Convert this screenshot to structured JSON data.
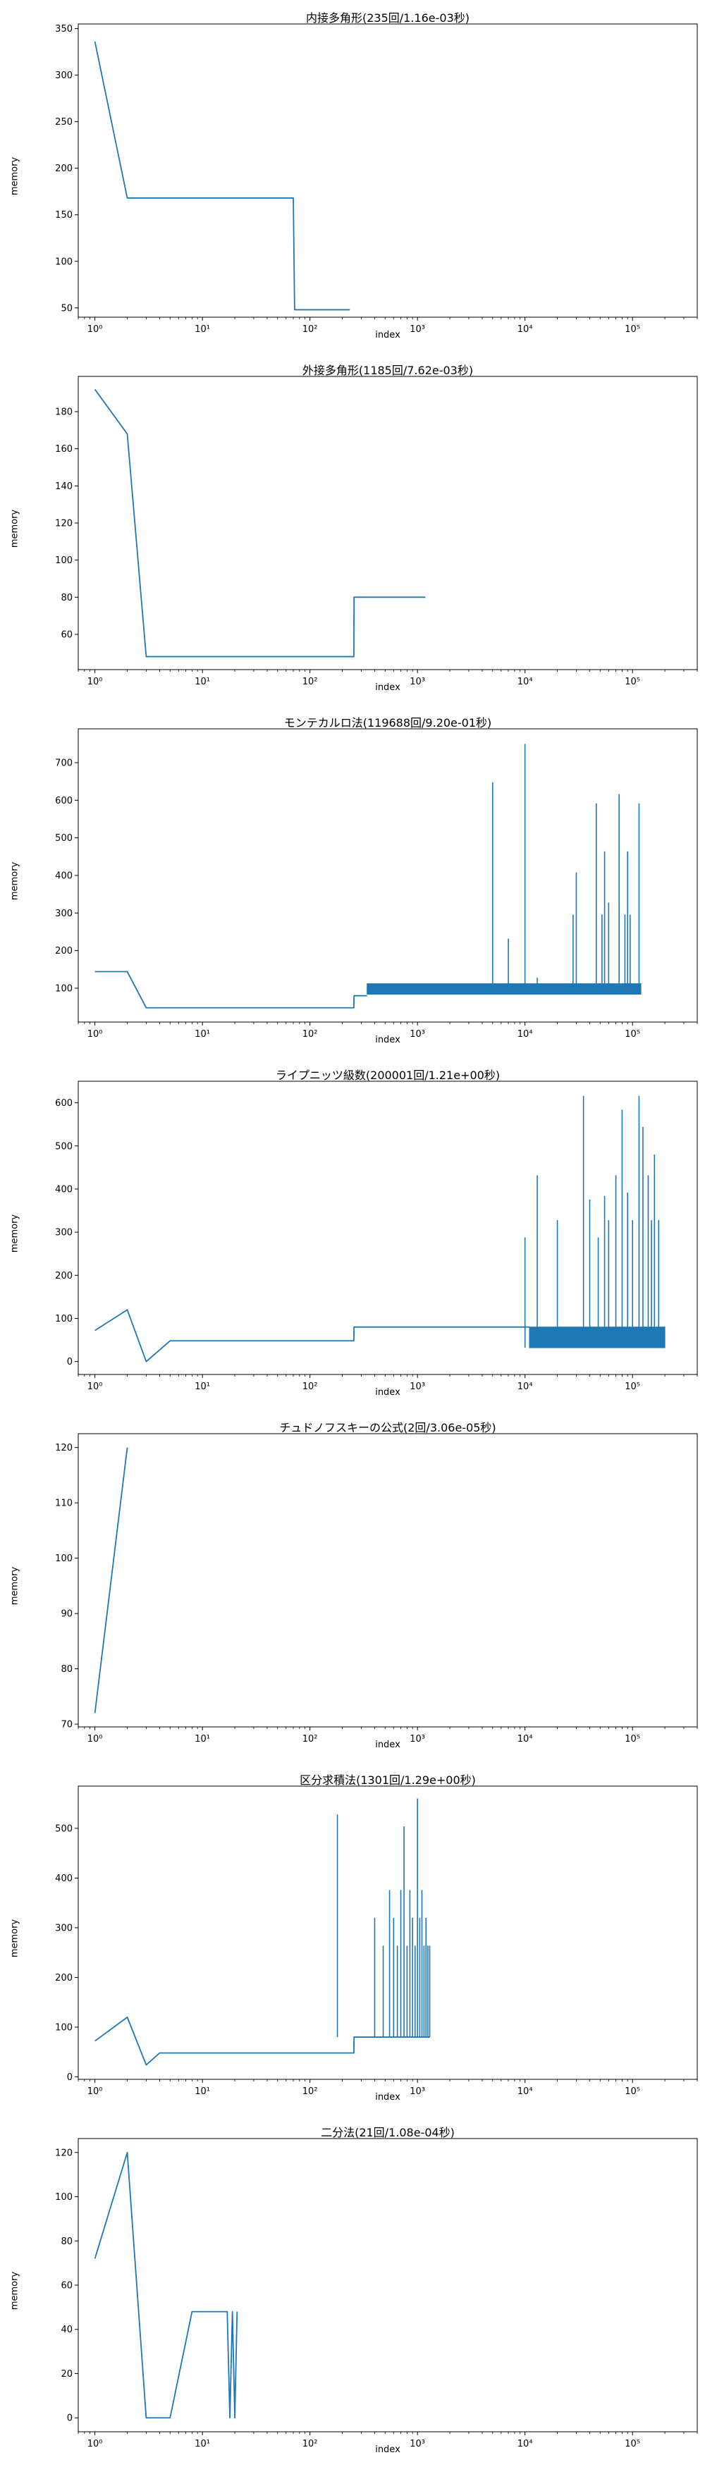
{
  "chart_data": [
    {
      "type": "line",
      "title": "内接多角形(235回/1.16e-03秒)",
      "xlabel": "index",
      "ylabel": "memory",
      "xscale": "log",
      "xlim": [
        0.7,
        400000
      ],
      "ylim": [
        40,
        355
      ],
      "yticks": [
        50,
        100,
        150,
        200,
        250,
        300,
        350
      ],
      "xticks": [
        1,
        10,
        100,
        1000,
        10000,
        100000
      ],
      "series": [
        {
          "color": "#1f77b4",
          "x": [
            1,
            2,
            70,
            72,
            235
          ],
          "y": [
            336,
            168,
            168,
            48,
            48
          ]
        }
      ],
      "spikes": null
    },
    {
      "type": "line",
      "title": "外接多角形(1185回/7.62e-03秒)",
      "xlabel": "index",
      "ylabel": "memory",
      "xscale": "log",
      "xlim": [
        0.7,
        400000
      ],
      "ylim": [
        41,
        199
      ],
      "yticks": [
        60,
        80,
        100,
        120,
        140,
        160,
        180
      ],
      "xticks": [
        1,
        10,
        100,
        1000,
        10000,
        100000
      ],
      "series": [
        {
          "color": "#1f77b4",
          "x": [
            1,
            2,
            3,
            256,
            257,
            1185
          ],
          "y": [
            192,
            168,
            48,
            48,
            80,
            80
          ]
        }
      ],
      "spikes": null
    },
    {
      "type": "line",
      "title": "モンテカルロ法(119688回/9.20e-01秒)",
      "xlabel": "index",
      "ylabel": "memory",
      "xscale": "log",
      "xlim": [
        0.7,
        400000
      ],
      "ylim": [
        10,
        790
      ],
      "yticks": [
        100,
        200,
        300,
        400,
        500,
        600,
        700
      ],
      "xticks": [
        1,
        10,
        100,
        1000,
        10000,
        100000
      ],
      "series": [
        {
          "color": "#1f77b4",
          "x": [
            1,
            2,
            3,
            256,
            257,
            340
          ],
          "y": [
            144,
            144,
            48,
            48,
            80,
            80
          ]
        }
      ],
      "spikes": {
        "color": "#1f77b4",
        "band": [
          {
            "from": 340,
            "to": 119688,
            "low": 84,
            "high": 112
          }
        ],
        "x": [
          5000,
          7000,
          10000,
          13000,
          28000,
          30000,
          46000,
          52000,
          55000,
          60000,
          75000,
          85000,
          90000,
          95000,
          115000
        ],
        "y": [
          648,
          232,
          750,
          128,
          296,
          408,
          592,
          296,
          464,
          328,
          616,
          296,
          464,
          296,
          592
        ]
      }
    },
    {
      "type": "line",
      "title": "ライプニッツ級数(200001回/1.21e+00秒)",
      "xlabel": "index",
      "ylabel": "memory",
      "xscale": "log",
      "xlim": [
        0.7,
        400000
      ],
      "ylim": [
        -30,
        650
      ],
      "yticks": [
        0,
        100,
        200,
        300,
        400,
        500,
        600
      ],
      "xticks": [
        1,
        10,
        100,
        1000,
        10000,
        100000
      ],
      "series": [
        {
          "color": "#1f77b4",
          "x": [
            1,
            2,
            3,
            5,
            256,
            257,
            11000
          ],
          "y": [
            72,
            120,
            0,
            48,
            48,
            80,
            80
          ]
        }
      ],
      "spikes": {
        "color": "#1f77b4",
        "band": [
          {
            "from": 11000,
            "to": 200001,
            "low": 32,
            "high": 80
          }
        ],
        "x": [
          10000,
          13000,
          20000,
          35000,
          40000,
          48000,
          55000,
          60000,
          70000,
          80000,
          90000,
          100000,
          115000,
          125000,
          140000,
          150000,
          160000,
          175000
        ],
        "y": [
          288,
          432,
          328,
          616,
          376,
          288,
          384,
          328,
          432,
          584,
          392,
          328,
          616,
          544,
          432,
          328,
          480,
          328
        ]
      }
    },
    {
      "type": "line",
      "title": "チュドノフスキーの公式(2回/3.06e-05秒)",
      "xlabel": "index",
      "ylabel": "memory",
      "xscale": "log",
      "xlim": [
        0.7,
        400000
      ],
      "ylim": [
        69.5,
        122.5
      ],
      "yticks": [
        70,
        80,
        90,
        100,
        110,
        120
      ],
      "xticks": [
        1,
        10,
        100,
        1000,
        10000,
        100000
      ],
      "series": [
        {
          "color": "#1f77b4",
          "x": [
            1,
            2
          ],
          "y": [
            72,
            120
          ]
        }
      ],
      "spikes": null
    },
    {
      "type": "line",
      "title": "区分求積法(1301回/1.29e+00秒)",
      "xlabel": "index",
      "ylabel": "memory",
      "xscale": "log",
      "xlim": [
        0.7,
        400000
      ],
      "ylim": [
        -5,
        585
      ],
      "yticks": [
        0,
        100,
        200,
        300,
        400,
        500
      ],
      "xticks": [
        1,
        10,
        100,
        1000,
        10000,
        100000
      ],
      "series": [
        {
          "color": "#1f77b4",
          "x": [
            1,
            2,
            3,
            4,
            256,
            257,
            1301
          ],
          "y": [
            72,
            120,
            24,
            48,
            48,
            80,
            80
          ]
        }
      ],
      "spikes": {
        "color": "#1f77b4",
        "band": null,
        "x": [
          180,
          400,
          480,
          550,
          600,
          650,
          700,
          750,
          800,
          850,
          900,
          950,
          1000,
          1050,
          1100,
          1150,
          1200,
          1250,
          1300
        ],
        "y": [
          528,
          320,
          264,
          376,
          320,
          264,
          376,
          504,
          264,
          376,
          320,
          264,
          560,
          320,
          376,
          264,
          320,
          264,
          264
        ]
      }
    },
    {
      "type": "line",
      "title": "二分法(21回/1.08e-04秒)",
      "xlabel": "index",
      "ylabel": "memory",
      "xscale": "log",
      "xlim": [
        0.7,
        400000
      ],
      "ylim": [
        -6.3,
        126.3
      ],
      "yticks": [
        0,
        20,
        40,
        60,
        80,
        100,
        120
      ],
      "xticks": [
        1,
        10,
        100,
        1000,
        10000,
        100000
      ],
      "series": [
        {
          "color": "#1f77b4",
          "x": [
            1,
            2,
            3,
            5,
            8,
            17,
            18,
            19,
            20,
            21
          ],
          "y": [
            72,
            120,
            0,
            0,
            48,
            48,
            0,
            48,
            0,
            48
          ]
        }
      ],
      "spikes": null
    }
  ]
}
